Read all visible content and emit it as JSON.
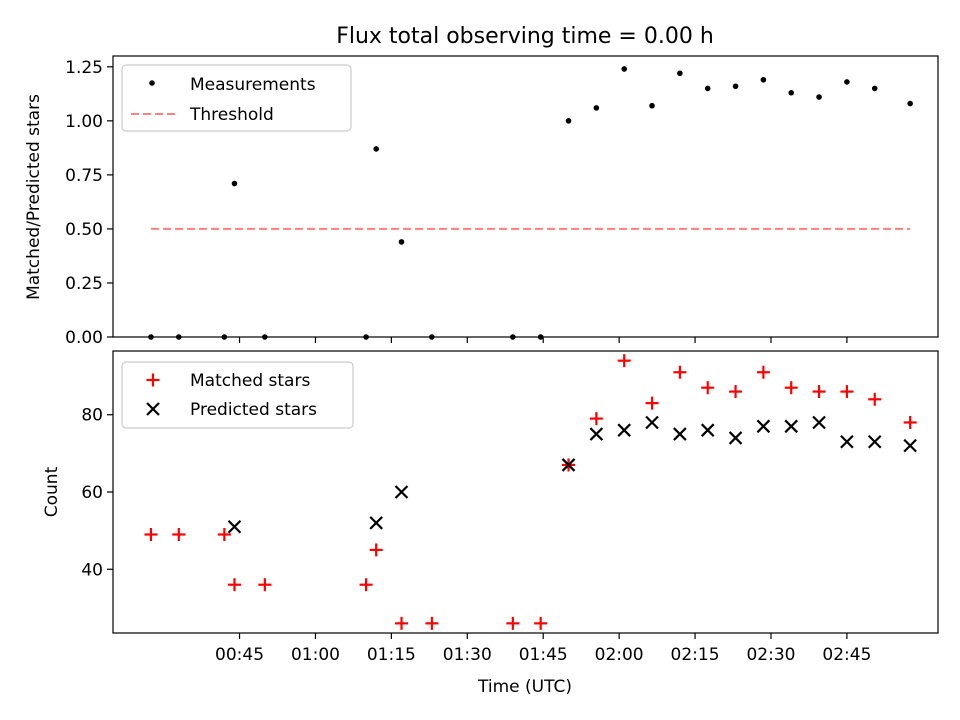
{
  "colors": {
    "measurement": "#000000",
    "threshold": "#ff8080",
    "matched": "#ff0000",
    "predicted": "#000000",
    "axis": "#000000"
  },
  "chart_data": [
    {
      "type": "scatter",
      "title": "Flux total observing time = 0.00 h",
      "xlabel": "",
      "ylabel": "Matched/Predicted stars",
      "xlim_minutes": [
        20,
        183
      ],
      "ylim": [
        0,
        1.3
      ],
      "yticks": [
        0.0,
        0.25,
        0.5,
        0.75,
        1.0,
        1.25
      ],
      "ytick_labels": [
        "0.00",
        "0.25",
        "0.50",
        "0.75",
        "1.00",
        "1.25"
      ],
      "legend": [
        "Measurements",
        "Threshold"
      ],
      "legend_location": "upper-left",
      "threshold": {
        "name": "Threshold",
        "y": 0.5,
        "x_start": 27.5,
        "x_end": 177.5
      },
      "series": [
        {
          "name": "Measurements",
          "marker": "dot",
          "x": [
            27.5,
            33,
            42,
            44,
            50,
            70,
            72,
            77,
            83,
            99,
            104.5,
            110,
            115.5,
            121,
            126.5,
            132,
            137.5,
            143,
            148.5,
            154,
            159.5,
            165,
            170.5,
            177.5
          ],
          "y": [
            0.0,
            0.0,
            0.0,
            0.71,
            0.0,
            0.0,
            0.87,
            0.44,
            0.0,
            0.0,
            0.0,
            1.0,
            1.06,
            1.24,
            1.07,
            1.22,
            1.15,
            1.16,
            1.19,
            1.13,
            1.11,
            1.18,
            1.15,
            1.08
          ]
        }
      ]
    },
    {
      "type": "scatter",
      "title": "",
      "xlabel": "Time (UTC)",
      "ylabel": "Count",
      "xlim_minutes": [
        20,
        183
      ],
      "ylim": [
        23.5,
        96.5
      ],
      "yticks": [
        40,
        60,
        80
      ],
      "ytick_labels": [
        "40",
        "60",
        "80"
      ],
      "xticks_minutes": [
        45,
        60,
        75,
        90,
        105,
        120,
        135,
        150,
        165
      ],
      "xtick_labels": [
        "00:45",
        "01:00",
        "01:15",
        "01:30",
        "01:45",
        "02:00",
        "02:15",
        "02:30",
        "02:45"
      ],
      "legend": [
        "Matched stars",
        "Predicted stars"
      ],
      "legend_location": "upper-left",
      "series": [
        {
          "name": "Matched stars",
          "marker": "plus",
          "x": [
            27.5,
            33,
            42,
            44,
            50,
            70,
            72,
            77,
            83,
            99,
            104.5,
            110,
            115.5,
            121,
            126.5,
            132,
            137.5,
            143,
            148.5,
            154,
            159.5,
            165,
            170.5,
            177.5
          ],
          "y": [
            49,
            49,
            49,
            36,
            36,
            36,
            45,
            26,
            26,
            26,
            26,
            67,
            79,
            94,
            83,
            91,
            87,
            86,
            91,
            87,
            86,
            86,
            84,
            78
          ]
        },
        {
          "name": "Predicted stars",
          "marker": "x",
          "x": [
            44,
            72,
            77,
            110,
            115.5,
            121,
            126.5,
            132,
            137.5,
            143,
            148.5,
            154,
            159.5,
            165,
            170.5,
            177.5
          ],
          "y": [
            51,
            52,
            60,
            67,
            75,
            76,
            78,
            75,
            76,
            74,
            77,
            77,
            78,
            73,
            73,
            72
          ]
        }
      ]
    }
  ]
}
